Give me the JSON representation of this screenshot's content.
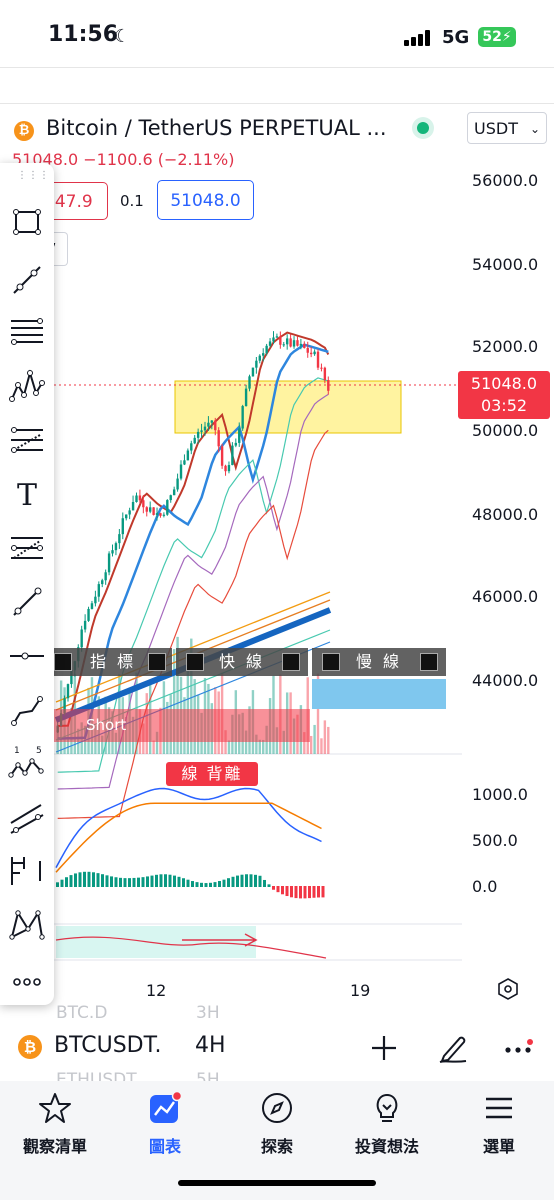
{
  "status_bar": {
    "time": "11:56",
    "network": "5G",
    "battery": "52"
  },
  "header": {
    "symbol_title": "Bitcoin / TetherUS PERPETUAL ...",
    "currency": "USDT",
    "price_change": "51048.0  −1100.6 (−2.11%)",
    "sell_price": "047.9",
    "spread": "0.1",
    "buy_price": "51048.0",
    "interval_chip": "7"
  },
  "price_axis": [
    "56000.0",
    "54000.0",
    "52000.0",
    "50000.0",
    "48000.0",
    "46000.0",
    "44000.0"
  ],
  "current_price": {
    "value": "51048.0",
    "countdown": "03:52"
  },
  "macd_axis": [
    "1000.0",
    "500.0",
    "0.0"
  ],
  "time_axis": [
    "12",
    "19"
  ],
  "overlays": {
    "indicator_label": "指 標",
    "fast_line_label": "快 線",
    "slow_line_label": "慢 線",
    "short_label": "Short",
    "divergence_label": "線 背離"
  },
  "chart_data": {
    "type": "candlestick",
    "symbol": "BTCUSDT",
    "interval": "4H",
    "last_price": 51048.0,
    "change": -1100.6,
    "change_pct": -2.11,
    "ylim": [
      43000,
      57000
    ],
    "x_ticks": [
      "12",
      "19"
    ],
    "approx_close_path": [
      43000,
      44200,
      45500,
      46200,
      47000,
      47800,
      48500,
      48200,
      48000,
      48600,
      49600,
      50000,
      50300,
      49000,
      50000,
      51500,
      52000,
      52200,
      52100,
      52000,
      51800,
      51048
    ],
    "macd_ylim": [
      -500,
      1300
    ],
    "macd_ticks": [
      1000.0,
      500.0,
      0.0
    ]
  },
  "bottom": {
    "symbol": "BTCUSDT.",
    "interval": "4H",
    "ghost_row1_symbol": "BTC.D",
    "ghost_row1_interval": "3H",
    "ghost_row2_symbol": "ETHUSDT",
    "ghost_row2_interval": "5H"
  },
  "tabs": [
    {
      "label": "觀察清單",
      "icon": "star-icon"
    },
    {
      "label": "圖表",
      "icon": "chart-icon"
    },
    {
      "label": "探索",
      "icon": "compass-icon"
    },
    {
      "label": "投資想法",
      "icon": "lightbulb-icon"
    },
    {
      "label": "選單",
      "icon": "menu-icon"
    }
  ],
  "colors": {
    "up": "#089981",
    "down": "#f23645",
    "accent": "#2962ff",
    "highlight": "#fff3a0"
  }
}
